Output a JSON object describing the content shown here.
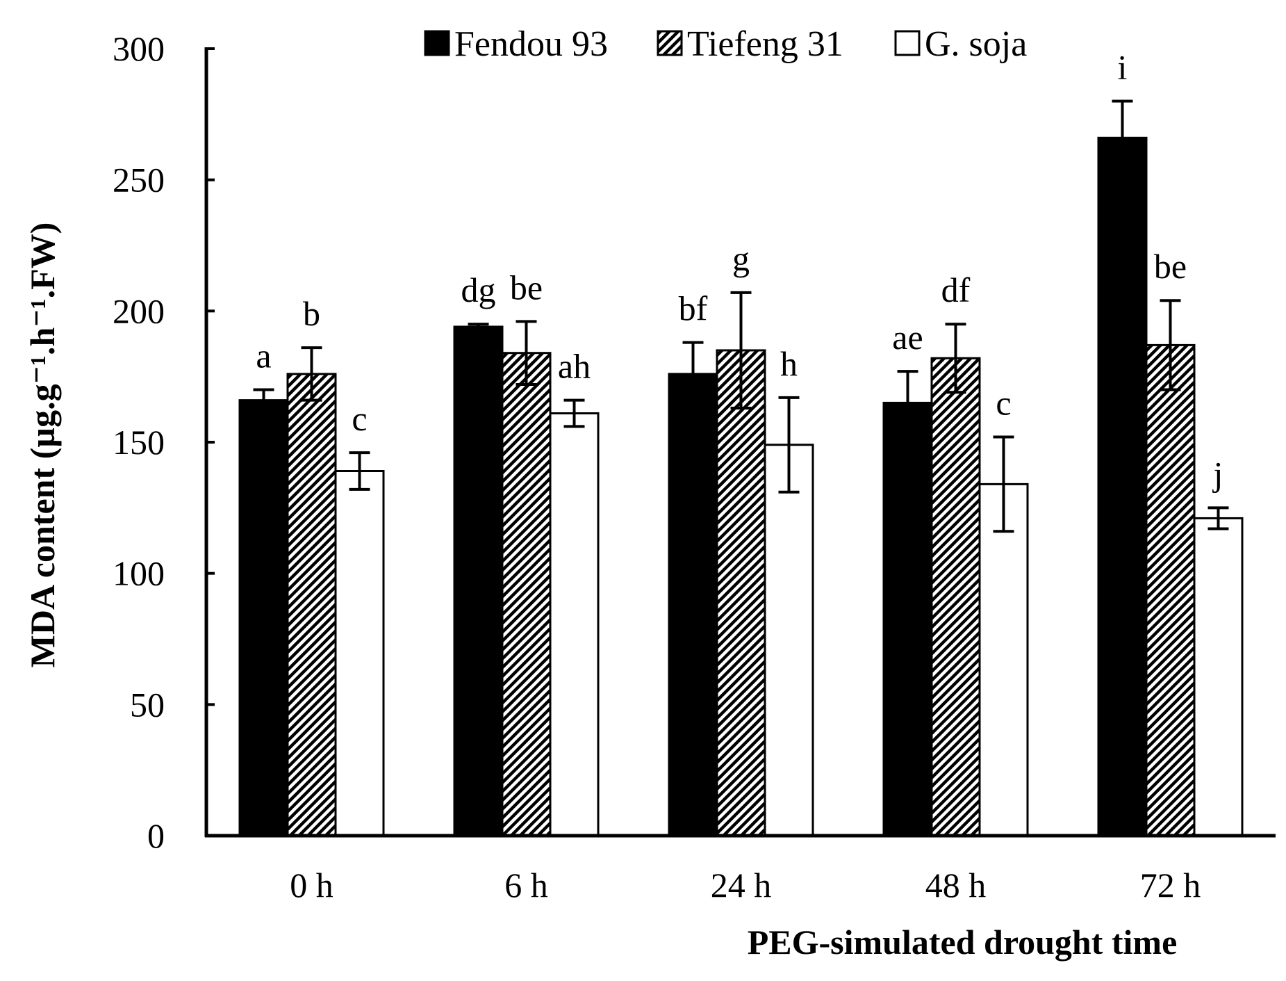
{
  "chart_data": {
    "type": "bar",
    "title": "",
    "xlabel": "PEG-simulated drought time",
    "ylabel": "MDA  content (µg.g⁻¹.h⁻¹.FW)",
    "ylim": [
      0,
      300
    ],
    "yticks": [
      0,
      50,
      100,
      150,
      200,
      250,
      300
    ],
    "categories": [
      "0 h",
      "6 h",
      "24 h",
      "48 h",
      "72 h"
    ],
    "legend_position": "top",
    "series": [
      {
        "name": "Fendou 93",
        "fill": "solid",
        "color": "#000000",
        "values": [
          166,
          194,
          176,
          165,
          266
        ],
        "errors": [
          4,
          1,
          12,
          12,
          14
        ],
        "labels": [
          "a",
          "dg",
          "bf",
          "ae",
          "i"
        ]
      },
      {
        "name": "Tiefeng 31",
        "fill": "hatched",
        "color": "#000000",
        "values": [
          176,
          184,
          185,
          182,
          187
        ],
        "errors": [
          10,
          12,
          22,
          13,
          17
        ],
        "labels": [
          "b",
          "be",
          "g",
          "df",
          "be"
        ]
      },
      {
        "name": "G. soja",
        "fill": "hollow",
        "color": "#ffffff",
        "values": [
          139,
          161,
          149,
          134,
          121
        ],
        "errors": [
          7,
          5,
          18,
          18,
          4
        ],
        "labels": [
          "c",
          "ah",
          "h",
          "c",
          "j"
        ]
      }
    ]
  }
}
